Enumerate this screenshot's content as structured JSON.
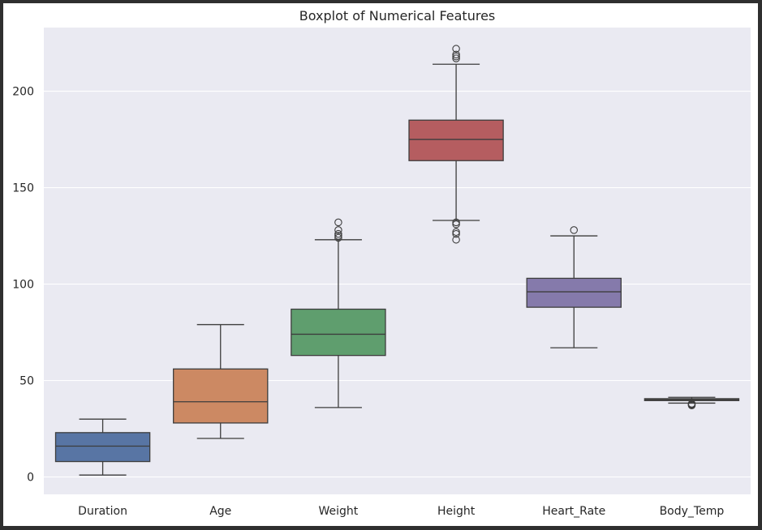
{
  "chart_data": {
    "type": "box",
    "title": "Boxplot of Numerical Features",
    "xlabel": "",
    "ylabel": "",
    "ylim": [
      -9,
      233
    ],
    "yticks": [
      0,
      50,
      100,
      150,
      200
    ],
    "grid": true,
    "legend": "none",
    "categories": [
      "Duration",
      "Age",
      "Weight",
      "Height",
      "Heart_Rate",
      "Body_Temp"
    ],
    "boxes": [
      {
        "min": 1,
        "q1": 8,
        "median": 16,
        "q3": 23,
        "max": 30,
        "outliers": [],
        "color": "#5875a4"
      },
      {
        "min": 20,
        "q1": 28,
        "median": 39,
        "q3": 56,
        "max": 79,
        "outliers": [],
        "color": "#cc8963"
      },
      {
        "min": 36,
        "q1": 63,
        "median": 74,
        "q3": 87,
        "max": 123,
        "outliers": [
          124,
          125,
          126,
          128,
          132
        ],
        "color": "#5f9e6e"
      },
      {
        "min": 133,
        "q1": 164,
        "median": 175,
        "q3": 185,
        "max": 214,
        "outliers": [
          123,
          126,
          127,
          131,
          132,
          217,
          218,
          219,
          222
        ],
        "color": "#b55d60"
      },
      {
        "min": 67,
        "q1": 88,
        "median": 96,
        "q3": 103,
        "max": 125,
        "outliers": [
          128
        ],
        "color": "#857aab"
      },
      {
        "min": 38.3,
        "q1": 39.6,
        "median": 40.1,
        "q3": 40.6,
        "max": 41.3,
        "outliers": [
          37.1,
          37.4,
          37.7,
          38.0
        ],
        "color": "#8d7866"
      }
    ]
  }
}
